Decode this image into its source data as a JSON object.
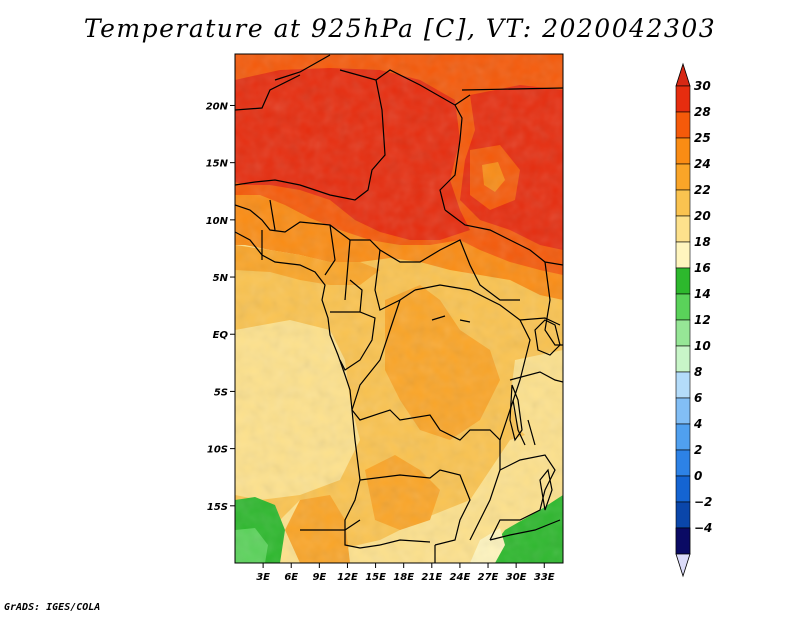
{
  "title": "Temperature at 925hPa [C], VT: 2020042303",
  "footer": "GrADS: IGES/COLA",
  "map": {
    "lon_range": [
      0,
      35
    ],
    "lat_range": [
      -20,
      24.5
    ],
    "lon_ticks": [
      {
        "value": 3,
        "label": "3E"
      },
      {
        "value": 6,
        "label": "6E"
      },
      {
        "value": 9,
        "label": "9E"
      },
      {
        "value": 12,
        "label": "12E"
      },
      {
        "value": 15,
        "label": "15E"
      },
      {
        "value": 18,
        "label": "18E"
      },
      {
        "value": 21,
        "label": "21E"
      },
      {
        "value": 24,
        "label": "24E"
      },
      {
        "value": 27,
        "label": "27E"
      },
      {
        "value": 30,
        "label": "30E"
      },
      {
        "value": 33,
        "label": "33E"
      }
    ],
    "lat_ticks": [
      {
        "value": 20,
        "label": "20N"
      },
      {
        "value": 15,
        "label": "15N"
      },
      {
        "value": 10,
        "label": "10N"
      },
      {
        "value": 5,
        "label": "5N"
      },
      {
        "value": 0,
        "label": "EQ"
      },
      {
        "value": -5,
        "label": "5S"
      },
      {
        "value": -10,
        "label": "10S"
      },
      {
        "value": -15,
        "label": "15S"
      }
    ]
  },
  "colorbar": {
    "levels": [
      {
        "label": "30",
        "color": "#e62d0f"
      },
      {
        "label": "28",
        "color": "#f55a0a"
      },
      {
        "label": "25",
        "color": "#fa8c14"
      },
      {
        "label": "24",
        "color": "#faa528"
      },
      {
        "label": "22",
        "color": "#fac350"
      },
      {
        "label": "20",
        "color": "#fde18c"
      },
      {
        "label": "18",
        "color": "#fff5be"
      },
      {
        "label": "16",
        "color": "#2db82d"
      },
      {
        "label": "14",
        "color": "#5ad25a"
      },
      {
        "label": "12",
        "color": "#96e696"
      },
      {
        "label": "10",
        "color": "#c8f5c8"
      },
      {
        "label": "8",
        "color": "#b4dcfa"
      },
      {
        "label": "6",
        "color": "#82bef5"
      },
      {
        "label": "4",
        "color": "#50a0ef"
      },
      {
        "label": "2",
        "color": "#2d82e6"
      },
      {
        "label": "0",
        "color": "#1464d2"
      },
      {
        "label": "−2",
        "color": "#0a46aa"
      },
      {
        "label": "−4",
        "color": "#082882"
      }
    ],
    "top_triangle_color": "#d72814",
    "bottom_triangle_color": "#dcdcfa",
    "bottom_segment_color": "#0a0a64"
  }
}
